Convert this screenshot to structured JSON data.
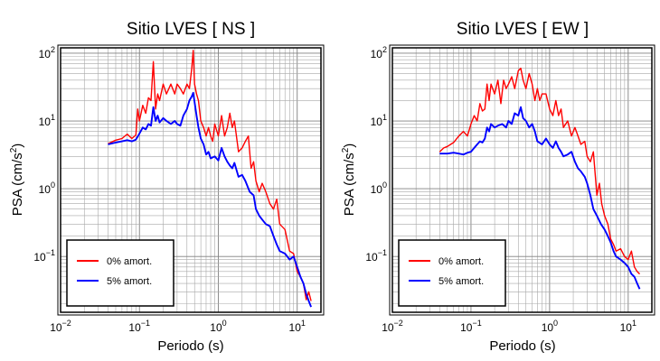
{
  "chart_data": [
    {
      "type": "line",
      "title": "Sitio LVES [ NS ]",
      "xlabel": "Periodo (s)",
      "ylabel": "PSA (cm/s",
      "ylabel_sup": "2",
      "ylabel_close": ")",
      "xscale": "log",
      "yscale": "log",
      "xlim": [
        0.01,
        20
      ],
      "ylim": [
        0.015,
        120
      ],
      "grid": true,
      "legend_position": "bottom-left",
      "xticks": [
        {
          "base": "10",
          "exp": "−2"
        },
        {
          "base": "10",
          "exp": "−1"
        },
        {
          "base": "10",
          "exp": "0"
        },
        {
          "base": "10",
          "exp": "1"
        }
      ],
      "yticks": [
        {
          "base": "10",
          "exp": "−1"
        },
        {
          "base": "10",
          "exp": "0"
        },
        {
          "base": "10",
          "exp": "1"
        },
        {
          "base": "10",
          "exp": "2"
        }
      ],
      "series": [
        {
          "name": "0% amort.",
          "color": "#ff0000",
          "x": [
            0.04,
            0.05,
            0.06,
            0.07,
            0.08,
            0.09,
            0.095,
            0.1,
            0.11,
            0.12,
            0.13,
            0.14,
            0.15,
            0.16,
            0.17,
            0.18,
            0.2,
            0.22,
            0.25,
            0.28,
            0.3,
            0.33,
            0.36,
            0.4,
            0.43,
            0.46,
            0.48,
            0.5,
            0.53,
            0.56,
            0.6,
            0.65,
            0.7,
            0.75,
            0.8,
            0.85,
            0.9,
            1.0,
            1.1,
            1.2,
            1.3,
            1.4,
            1.5,
            1.6,
            1.8,
            2.0,
            2.2,
            2.4,
            2.6,
            2.8,
            3.0,
            3.3,
            3.6,
            4.0,
            4.5,
            5.0,
            5.5,
            6.0,
            7.0,
            8.0,
            9.0,
            10.0,
            11.0,
            12.0,
            13.0,
            14.0,
            15.0
          ],
          "y": [
            4.6,
            5.2,
            5.5,
            6.4,
            5.5,
            6.2,
            15.0,
            10.0,
            17.0,
            13.0,
            22.0,
            20.0,
            75.0,
            15.0,
            25.0,
            20.0,
            35.0,
            25.0,
            35.0,
            25.0,
            35.0,
            30.0,
            25.0,
            35.0,
            30.0,
            60.0,
            110.0,
            35.0,
            25.0,
            20.0,
            10.0,
            8.0,
            6.0,
            8.0,
            6.0,
            5.0,
            9.0,
            6.0,
            12.0,
            6.0,
            8.0,
            13.0,
            8.0,
            10.0,
            3.5,
            4.0,
            5.0,
            6.0,
            2.0,
            2.5,
            1.3,
            0.9,
            1.2,
            0.9,
            0.6,
            0.5,
            0.7,
            0.3,
            0.25,
            0.12,
            0.11,
            0.06,
            0.05,
            0.04,
            0.023,
            0.03,
            0.022
          ]
        },
        {
          "name": "5% amort.",
          "color": "#0000ff",
          "x": [
            0.04,
            0.05,
            0.06,
            0.07,
            0.08,
            0.09,
            0.1,
            0.11,
            0.12,
            0.13,
            0.14,
            0.15,
            0.16,
            0.17,
            0.18,
            0.2,
            0.22,
            0.25,
            0.28,
            0.3,
            0.33,
            0.36,
            0.4,
            0.43,
            0.46,
            0.48,
            0.5,
            0.53,
            0.56,
            0.6,
            0.65,
            0.7,
            0.75,
            0.8,
            0.9,
            1.0,
            1.1,
            1.2,
            1.3,
            1.4,
            1.5,
            1.6,
            1.8,
            2.0,
            2.2,
            2.5,
            2.8,
            3.0,
            3.3,
            3.6,
            4.0,
            4.5,
            5.0,
            5.5,
            6.0,
            7.0,
            8.0,
            9.0,
            10.0,
            11.0,
            12.0,
            13.0,
            14.0,
            15.0
          ],
          "y": [
            4.5,
            4.8,
            5.0,
            5.2,
            5.0,
            5.3,
            6.5,
            8.0,
            7.5,
            9.0,
            8.5,
            16.0,
            10.0,
            12.0,
            9.5,
            11.0,
            10.0,
            9.0,
            10.0,
            9.0,
            8.5,
            12.0,
            15.0,
            20.0,
            23.0,
            26.0,
            19.0,
            12.0,
            8.0,
            5.5,
            4.5,
            3.2,
            3.5,
            2.8,
            3.0,
            2.6,
            4.0,
            3.0,
            2.5,
            2.2,
            2.0,
            2.4,
            1.5,
            1.6,
            1.3,
            0.9,
            0.8,
            0.5,
            0.4,
            0.35,
            0.3,
            0.28,
            0.2,
            0.15,
            0.12,
            0.11,
            0.09,
            0.1,
            0.07,
            0.05,
            0.04,
            0.028,
            0.022,
            0.018
          ]
        }
      ]
    },
    {
      "type": "line",
      "title": "Sitio LVES [ EW ]",
      "xlabel": "Periodo (s)",
      "ylabel": "PSA (cm/s",
      "ylabel_sup": "2",
      "ylabel_close": ")",
      "xscale": "log",
      "yscale": "log",
      "xlim": [
        0.01,
        20
      ],
      "ylim": [
        0.015,
        120
      ],
      "grid": true,
      "legend_position": "bottom-left",
      "xticks": [
        {
          "base": "10",
          "exp": "−2"
        },
        {
          "base": "10",
          "exp": "−1"
        },
        {
          "base": "10",
          "exp": "0"
        },
        {
          "base": "10",
          "exp": "1"
        }
      ],
      "yticks": [
        {
          "base": "10",
          "exp": "−1"
        },
        {
          "base": "10",
          "exp": "0"
        },
        {
          "base": "10",
          "exp": "1"
        },
        {
          "base": "10",
          "exp": "2"
        }
      ],
      "series": [
        {
          "name": "0% amort.",
          "color": "#ff0000",
          "x": [
            0.04,
            0.045,
            0.05,
            0.055,
            0.06,
            0.07,
            0.08,
            0.09,
            0.1,
            0.11,
            0.12,
            0.13,
            0.14,
            0.15,
            0.16,
            0.17,
            0.18,
            0.2,
            0.22,
            0.24,
            0.26,
            0.28,
            0.3,
            0.33,
            0.36,
            0.4,
            0.43,
            0.46,
            0.5,
            0.55,
            0.6,
            0.65,
            0.7,
            0.75,
            0.8,
            0.9,
            1.0,
            1.1,
            1.2,
            1.3,
            1.4,
            1.5,
            1.7,
            1.9,
            2.1,
            2.3,
            2.5,
            2.8,
            3.0,
            3.3,
            3.6,
            4.0,
            4.3,
            4.6,
            5.0,
            5.5,
            6.0,
            6.5,
            7.0,
            8.0,
            9.0,
            10.0,
            11.0,
            12.0,
            13.0,
            14.0
          ],
          "y": [
            3.5,
            4.0,
            4.2,
            4.5,
            4.8,
            6.0,
            7.0,
            6.0,
            9.0,
            12.0,
            10.0,
            18.0,
            14.0,
            15.0,
            35.0,
            20.0,
            35.0,
            25.0,
            40.0,
            18.0,
            40.0,
            30.0,
            35.0,
            45.0,
            30.0,
            55.0,
            60.0,
            40.0,
            30.0,
            50.0,
            35.0,
            20.0,
            30.0,
            20.0,
            25.0,
            25.0,
            15.0,
            12.0,
            20.0,
            12.0,
            15.0,
            8.0,
            10.0,
            6.0,
            8.0,
            6.0,
            4.5,
            5.0,
            3.0,
            2.5,
            3.5,
            0.8,
            1.2,
            0.6,
            0.4,
            0.3,
            0.18,
            0.15,
            0.12,
            0.13,
            0.1,
            0.09,
            0.12,
            0.07,
            0.06,
            0.055
          ]
        },
        {
          "name": "5% amort.",
          "color": "#0000ff",
          "x": [
            0.04,
            0.05,
            0.06,
            0.07,
            0.08,
            0.09,
            0.1,
            0.11,
            0.12,
            0.13,
            0.14,
            0.15,
            0.16,
            0.17,
            0.18,
            0.2,
            0.22,
            0.25,
            0.28,
            0.3,
            0.33,
            0.36,
            0.4,
            0.43,
            0.46,
            0.5,
            0.55,
            0.6,
            0.65,
            0.7,
            0.8,
            0.9,
            1.0,
            1.1,
            1.2,
            1.3,
            1.4,
            1.5,
            1.7,
            1.9,
            2.1,
            2.3,
            2.5,
            2.8,
            3.0,
            3.3,
            3.6,
            4.0,
            4.5,
            5.0,
            5.5,
            6.0,
            6.5,
            7.0,
            8.0,
            9.0,
            10.0,
            11.0,
            12.0,
            13.0,
            14.0
          ],
          "y": [
            3.3,
            3.3,
            3.4,
            3.3,
            3.2,
            3.4,
            3.5,
            4.0,
            4.5,
            5.0,
            4.8,
            5.5,
            8.0,
            7.0,
            9.0,
            8.0,
            8.5,
            9.0,
            8.0,
            10.0,
            9.0,
            13.0,
            12.0,
            16.0,
            11.0,
            10.0,
            8.0,
            9.0,
            7.0,
            5.0,
            4.5,
            5.5,
            4.5,
            4.0,
            5.0,
            4.0,
            3.5,
            3.0,
            3.2,
            3.5,
            2.5,
            2.0,
            1.8,
            1.5,
            1.2,
            0.8,
            0.5,
            0.4,
            0.3,
            0.25,
            0.2,
            0.16,
            0.12,
            0.1,
            0.09,
            0.08,
            0.07,
            0.055,
            0.05,
            0.04,
            0.033
          ]
        }
      ]
    }
  ]
}
